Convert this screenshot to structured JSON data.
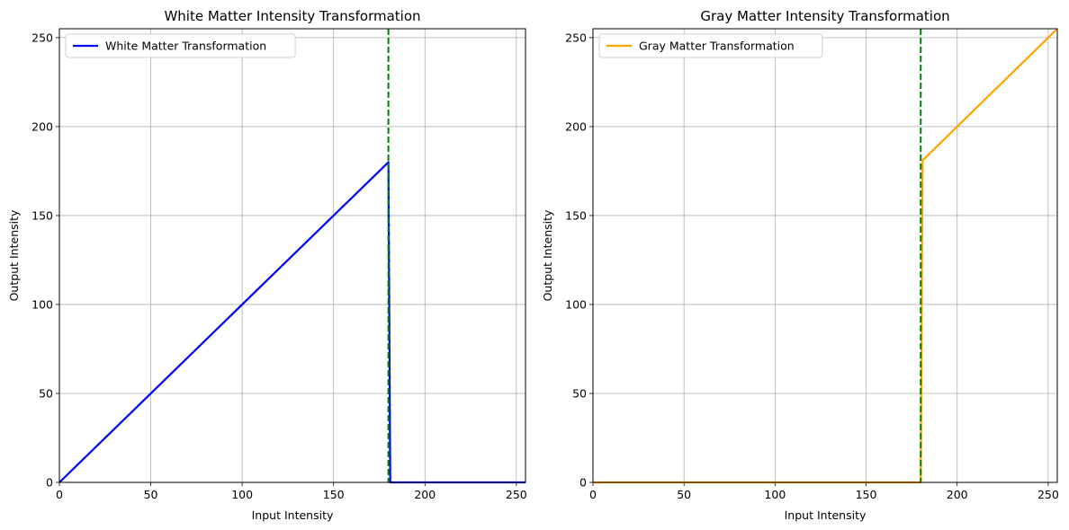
{
  "figure": {
    "background": "#ffffff"
  },
  "chart_data": [
    {
      "type": "line",
      "title": "White Matter Intensity Transformation",
      "xlabel": "Input Intensity",
      "ylabel": "Output Intensity",
      "xlim": [
        0,
        255
      ],
      "ylim": [
        0,
        255
      ],
      "xticks": [
        0,
        50,
        100,
        150,
        200,
        250
      ],
      "yticks": [
        0,
        50,
        100,
        150,
        200,
        250
      ],
      "grid": true,
      "legend_position": "upper-left",
      "series": [
        {
          "name": "White Matter Transformation",
          "color": "#0000ff",
          "x": [
            0,
            180,
            181,
            255
          ],
          "y": [
            0,
            180,
            0,
            0
          ]
        }
      ],
      "vlines": [
        {
          "x": 180,
          "color": "#008000",
          "style": "dashed"
        }
      ]
    },
    {
      "type": "line",
      "title": "Gray Matter Intensity Transformation",
      "xlabel": "Input Intensity",
      "ylabel": "Output Intensity",
      "xlim": [
        0,
        255
      ],
      "ylim": [
        0,
        255
      ],
      "xticks": [
        0,
        50,
        100,
        150,
        200,
        250
      ],
      "yticks": [
        0,
        50,
        100,
        150,
        200,
        250
      ],
      "grid": true,
      "legend_position": "upper-left",
      "series": [
        {
          "name": "Gray Matter Transformation",
          "color": "#ffa500",
          "x": [
            0,
            180,
            181,
            255
          ],
          "y": [
            0,
            0,
            181,
            255
          ]
        }
      ],
      "vlines": [
        {
          "x": 180,
          "color": "#008000",
          "style": "dashed"
        }
      ]
    }
  ]
}
